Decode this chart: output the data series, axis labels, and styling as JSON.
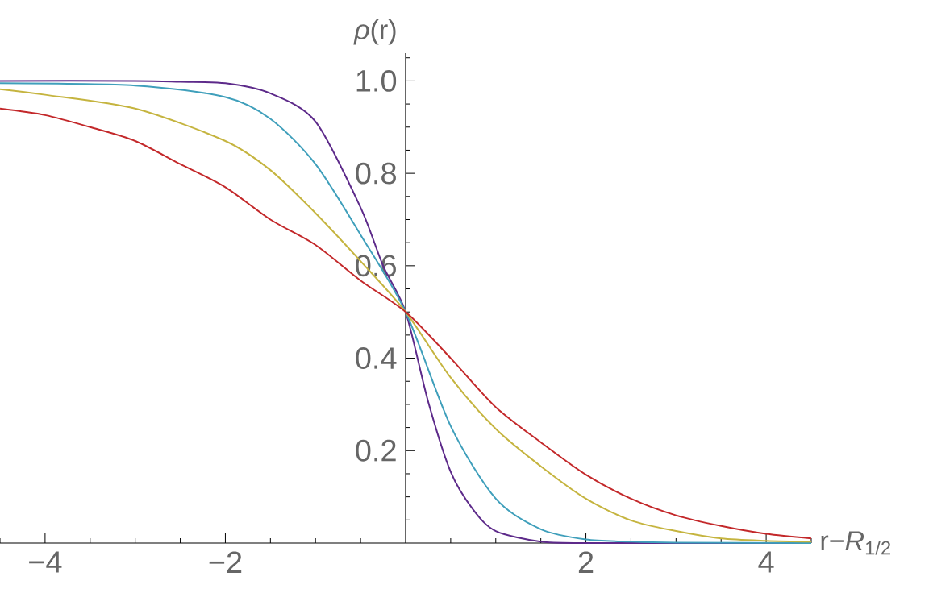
{
  "chart_data": {
    "type": "line",
    "xlabel": "r−*R*$_{1/2}$",
    "ylabel": "*ρ*(r)",
    "xlim": [
      -4.5,
      4.5
    ],
    "ylim": [
      0,
      1.06
    ],
    "xticks": [
      {
        "value": -4.5,
        "label": null
      },
      {
        "value": -4,
        "label": "−4"
      },
      {
        "value": -3.5,
        "label": null
      },
      {
        "value": -3,
        "label": null
      },
      {
        "value": -2.5,
        "label": null
      },
      {
        "value": -2,
        "label": "−2"
      },
      {
        "value": -1.5,
        "label": null
      },
      {
        "value": -1,
        "label": null
      },
      {
        "value": -0.5,
        "label": null
      },
      {
        "value": 0.5,
        "label": null
      },
      {
        "value": 1,
        "label": null
      },
      {
        "value": 1.5,
        "label": null
      },
      {
        "value": 2,
        "label": "2"
      },
      {
        "value": 2.5,
        "label": null
      },
      {
        "value": 3,
        "label": null
      },
      {
        "value": 3.5,
        "label": null
      },
      {
        "value": 4,
        "label": "4"
      },
      {
        "value": 4.5,
        "label": null
      }
    ],
    "yticks": [
      {
        "value": 0.05,
        "label": null
      },
      {
        "value": 0.1,
        "label": null
      },
      {
        "value": 0.15,
        "label": null
      },
      {
        "value": 0.2,
        "label": "0.2"
      },
      {
        "value": 0.25,
        "label": null
      },
      {
        "value": 0.3,
        "label": null
      },
      {
        "value": 0.35,
        "label": null
      },
      {
        "value": 0.4,
        "label": "0.4"
      },
      {
        "value": 0.45,
        "label": null
      },
      {
        "value": 0.5,
        "label": null
      },
      {
        "value": 0.55,
        "label": null
      },
      {
        "value": 0.6,
        "label": "0.6"
      },
      {
        "value": 0.65,
        "label": null
      },
      {
        "value": 0.7,
        "label": null
      },
      {
        "value": 0.75,
        "label": null
      },
      {
        "value": 0.8,
        "label": "0.8"
      },
      {
        "value": 0.85,
        "label": null
      },
      {
        "value": 0.9,
        "label": null
      },
      {
        "value": 0.95,
        "label": null
      },
      {
        "value": 1.0,
        "label": "1.0"
      },
      {
        "value": 1.05,
        "label": null
      }
    ],
    "grid": false,
    "marker": "none",
    "line_style": "solid",
    "series": [
      {
        "color": "#5d2a8a",
        "x": [
          -4.5,
          -3,
          -2.5,
          -2,
          -1.5,
          -1,
          -0.5,
          -0.25,
          0,
          0.25,
          0.5,
          0.75,
          1,
          1.5,
          2,
          3,
          4.5
        ],
        "values": [
          1.0,
          1.0,
          0.998,
          0.995,
          0.973,
          0.912,
          0.726,
          0.6,
          0.5,
          0.306,
          0.154,
          0.072,
          0.026,
          0.003,
          0.0,
          0.0,
          0.0
        ]
      },
      {
        "color": "#3f9fbb",
        "x": [
          -4.5,
          -3,
          -2,
          -1.5,
          -1,
          -0.5,
          0,
          0.5,
          1,
          1.5,
          2,
          2.5,
          3,
          4.5
        ],
        "values": [
          0.995,
          0.99,
          0.965,
          0.918,
          0.82,
          0.667,
          0.5,
          0.253,
          0.096,
          0.03,
          0.008,
          0.003,
          0.001,
          0.0
        ]
      },
      {
        "color": "#c5b43f",
        "x": [
          -4.5,
          -4,
          -3,
          -2,
          -1.5,
          -1,
          -0.5,
          0,
          0.5,
          1,
          1.5,
          2,
          2.5,
          3,
          3.5,
          4,
          4.5
        ],
        "values": [
          0.982,
          0.97,
          0.94,
          0.87,
          0.807,
          0.714,
          0.61,
          0.5,
          0.358,
          0.247,
          0.166,
          0.096,
          0.049,
          0.026,
          0.01,
          0.005,
          0.003
        ]
      },
      {
        "color": "#c3282a",
        "x": [
          -4.5,
          -4,
          -3.5,
          -3,
          -2.5,
          -2,
          -1.5,
          -1,
          -0.5,
          0,
          0.5,
          1,
          1.5,
          2,
          2.5,
          3,
          3.5,
          4,
          4.5
        ],
        "values": [
          0.94,
          0.926,
          0.9,
          0.87,
          0.82,
          0.77,
          0.7,
          0.645,
          0.568,
          0.5,
          0.4,
          0.294,
          0.218,
          0.148,
          0.096,
          0.06,
          0.037,
          0.02,
          0.01
        ]
      }
    ]
  }
}
